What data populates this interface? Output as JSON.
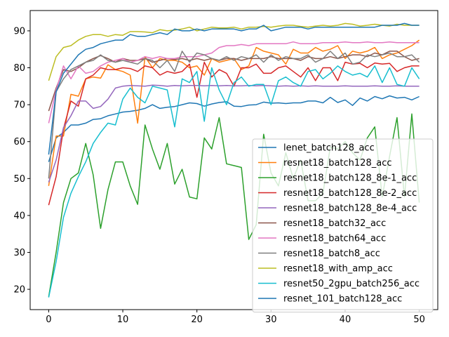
{
  "chart_data": {
    "type": "line",
    "title": "",
    "xlabel": "",
    "ylabel": "",
    "xlim": [
      -2.5,
      52.5
    ],
    "ylim": [
      14.5,
      95.5
    ],
    "xticks": [
      0,
      10,
      20,
      30,
      40,
      50
    ],
    "yticks": [
      20,
      30,
      40,
      50,
      60,
      70,
      80,
      90
    ],
    "grid": false,
    "legend_position": "lower-right",
    "x": [
      0,
      1,
      2,
      3,
      4,
      5,
      6,
      7,
      8,
      9,
      10,
      11,
      12,
      13,
      14,
      15,
      16,
      17,
      18,
      19,
      20,
      21,
      22,
      23,
      24,
      25,
      26,
      27,
      28,
      29,
      30,
      31,
      32,
      33,
      34,
      35,
      36,
      37,
      38,
      39,
      40,
      41,
      42,
      43,
      44,
      45,
      46,
      47,
      48,
      49,
      50
    ],
    "series": [
      {
        "name": "lenet_batch128_acc",
        "color": "#1f77b4",
        "values": [
          54.5,
          61.0,
          62.5,
          64.5,
          64.5,
          65.0,
          66.0,
          66.2,
          67.0,
          67.5,
          68.0,
          68.2,
          68.5,
          69.0,
          70.0,
          69.0,
          69.3,
          69.5,
          70.0,
          70.5,
          70.3,
          69.6,
          70.2,
          70.6,
          70.8,
          69.6,
          69.5,
          69.9,
          70.0,
          70.7,
          70.4,
          70.5,
          70.3,
          70.5,
          70.5,
          71.0,
          71.0,
          70.5,
          72.0,
          70.6,
          71.3,
          69.8,
          71.8,
          71.0,
          72.2,
          71.6,
          72.4,
          71.8,
          72.0,
          71.3,
          72.2
        ]
      },
      {
        "name": "resnet18_batch128_acc",
        "color": "#ff7f0e",
        "values": [
          48.0,
          61.5,
          61.5,
          72.8,
          72.3,
          77.0,
          77.5,
          77.2,
          80.8,
          79.5,
          79.0,
          78.0,
          65.0,
          83.0,
          80.0,
          82.5,
          82.0,
          82.0,
          81.5,
          80.0,
          80.5,
          78.0,
          82.5,
          81.5,
          82.0,
          82.5,
          79.5,
          80.5,
          85.5,
          84.5,
          84.0,
          83.5,
          81.0,
          85.0,
          84.0,
          84.0,
          85.5,
          84.5,
          85.0,
          86.0,
          82.5,
          84.5,
          84.0,
          84.5,
          85.5,
          82.5,
          83.5,
          84.0,
          85.0,
          86.0,
          87.5
        ]
      },
      {
        "name": "resnet18_batch128_8e-1_acc",
        "color": "#2ca02c",
        "values": [
          18.0,
          30.0,
          43.5,
          50.0,
          51.5,
          59.5,
          51.0,
          36.5,
          47.0,
          54.5,
          54.5,
          48.0,
          43.0,
          64.5,
          58.0,
          52.5,
          59.5,
          48.5,
          52.5,
          45.0,
          44.5,
          61.0,
          58.0,
          66.5,
          54.0,
          53.5,
          53.0,
          33.5,
          37.5,
          62.0,
          51.5,
          48.0,
          57.0,
          50.0,
          55.0,
          44.0,
          44.0,
          46.0,
          58.5,
          58.0,
          60.0,
          57.0,
          55.0,
          61.0,
          64.0,
          45.0,
          56.0,
          66.5,
          45.0,
          67.5,
          43.5
        ]
      },
      {
        "name": "resnet18_batch128_8e-2_acc",
        "color": "#d62728",
        "values": [
          42.8,
          50.5,
          63.5,
          71.0,
          69.6,
          77.0,
          78.0,
          80.0,
          79.5,
          79.5,
          80.0,
          79.8,
          79.0,
          80.5,
          80.0,
          78.0,
          79.0,
          78.5,
          79.0,
          81.0,
          72.0,
          81.5,
          77.5,
          79.5,
          78.5,
          75.0,
          80.0,
          80.0,
          81.0,
          78.5,
          78.5,
          80.0,
          80.5,
          79.0,
          77.5,
          80.0,
          76.5,
          80.0,
          80.0,
          76.5,
          81.5,
          81.0,
          81.2,
          80.0,
          81.3,
          81.0,
          81.2,
          79.0,
          80.0,
          80.5,
          80.5
        ]
      },
      {
        "name": "resnet18_batch128_8e-4_acc",
        "color": "#9467bd",
        "values": [
          49.0,
          55.0,
          63.8,
          67.0,
          71.0,
          71.0,
          69.0,
          69.5,
          71.5,
          74.5,
          75.0,
          75.2,
          75.1,
          75.0,
          75.3,
          75.2,
          75.0,
          75.2,
          75.1,
          75.2,
          75.2,
          75.1,
          75.2,
          75.1,
          75.2,
          75.1,
          75.1,
          75.2,
          75.1,
          75.2,
          75.1,
          75.0,
          75.1,
          75.0,
          75.1,
          75.0,
          75.1,
          75.0,
          75.0,
          75.0,
          75.1,
          75.0,
          75.0,
          75.0,
          75.1,
          75.0,
          75.0,
          75.1,
          75.0,
          75.0,
          75.0
        ]
      },
      {
        "name": "resnet18_batch32_acc",
        "color": "#8c564b",
        "values": [
          68.3,
          74.5,
          79.5,
          79.0,
          80.0,
          81.5,
          82.5,
          83.3,
          82.5,
          81.5,
          82.5,
          82.0,
          82.0,
          82.5,
          81.5,
          82.0,
          82.5,
          82.2,
          82.5,
          82.0,
          82.5,
          82.0,
          82.5,
          82.0,
          82.5,
          82.5,
          82.0,
          82.5,
          82.5,
          82.5,
          83.0,
          82.5,
          82.5,
          82.5,
          82.0,
          83.0,
          82.5,
          82.5,
          83.0,
          82.5,
          83.0,
          83.5,
          83.5,
          83.0,
          84.0,
          83.5,
          84.5,
          84.5,
          83.0,
          82.0,
          82.5
        ]
      },
      {
        "name": "resnet18_batch64_acc",
        "color": "#e377c2",
        "values": [
          65.0,
          74.0,
          80.5,
          77.0,
          80.5,
          78.5,
          79.0,
          80.5,
          81.5,
          82.0,
          82.5,
          81.5,
          82.0,
          83.0,
          82.5,
          83.0,
          82.5,
          82.5,
          83.0,
          83.0,
          83.0,
          83.5,
          84.0,
          85.5,
          86.0,
          86.0,
          86.3,
          86.0,
          86.5,
          86.5,
          86.5,
          86.5,
          86.5,
          87.0,
          86.5,
          86.5,
          86.5,
          86.8,
          86.8,
          86.8,
          87.0,
          86.8,
          86.8,
          87.0,
          86.8,
          86.8,
          87.0,
          86.8,
          86.8,
          86.8,
          86.8
        ]
      },
      {
        "name": "resnet18_batch8_acc",
        "color": "#7f7f7f",
        "values": [
          50.0,
          73.5,
          77.0,
          79.5,
          80.5,
          81.5,
          82.0,
          83.5,
          82.0,
          81.5,
          82.0,
          81.5,
          81.0,
          82.5,
          82.0,
          80.0,
          82.0,
          79.0,
          84.5,
          81.5,
          84.0,
          83.5,
          82.5,
          82.0,
          83.0,
          82.0,
          83.0,
          82.5,
          83.5,
          81.5,
          83.5,
          82.0,
          83.0,
          82.5,
          82.5,
          83.5,
          81.5,
          82.5,
          84.5,
          82.5,
          84.0,
          81.0,
          81.5,
          83.5,
          83.0,
          83.5,
          84.0,
          83.0,
          83.0,
          83.5,
          81.5
        ]
      },
      {
        "name": "resnet18_with_amp_acc",
        "color": "#bcbd22",
        "values": [
          76.5,
          83.0,
          85.5,
          86.0,
          87.5,
          88.5,
          89.0,
          89.0,
          88.5,
          89.0,
          88.8,
          89.8,
          89.8,
          89.7,
          89.5,
          90.3,
          90.0,
          90.2,
          90.5,
          91.0,
          90.0,
          90.5,
          91.0,
          90.8,
          90.8,
          91.0,
          90.5,
          91.0,
          91.0,
          91.2,
          91.0,
          91.3,
          91.5,
          91.5,
          91.2,
          91.0,
          91.3,
          91.5,
          91.3,
          91.5,
          92.0,
          91.8,
          91.3,
          91.5,
          91.8,
          91.5,
          91.3,
          91.8,
          91.5,
          91.5,
          91.5
        ]
      },
      {
        "name": "resnet50_2gpu_batch256_acc",
        "color": "#17becf",
        "values": [
          17.8,
          27.5,
          39.5,
          46.0,
          50.5,
          54.5,
          59.5,
          62.5,
          65.0,
          64.5,
          71.5,
          74.5,
          72.0,
          70.5,
          75.0,
          74.5,
          74.0,
          64.0,
          77.0,
          76.0,
          79.0,
          65.5,
          80.0,
          74.0,
          70.0,
          76.0,
          77.5,
          75.0,
          75.5,
          75.5,
          70.0,
          76.5,
          77.5,
          76.0,
          75.0,
          79.0,
          79.5,
          77.0,
          78.5,
          80.5,
          79.0,
          78.0,
          78.5,
          77.5,
          80.5,
          76.0,
          80.0,
          75.5,
          75.0,
          80.0,
          77.0
        ]
      },
      {
        "name": "resnet_101_batch128_acc",
        "color": "#1f77b4",
        "values": [
          56.5,
          73.5,
          78.5,
          81.0,
          83.5,
          85.0,
          85.5,
          86.5,
          87.0,
          87.5,
          87.5,
          89.0,
          88.5,
          88.5,
          89.0,
          89.5,
          89.0,
          90.5,
          90.0,
          90.0,
          90.5,
          90.0,
          90.5,
          90.5,
          90.5,
          90.5,
          90.0,
          90.5,
          90.5,
          91.5,
          90.0,
          90.5,
          91.0,
          91.0,
          91.0,
          90.5,
          91.0,
          91.0,
          91.0,
          91.0,
          91.0,
          91.0,
          91.0,
          91.0,
          91.0,
          91.5,
          91.5,
          91.5,
          92.0,
          91.5,
          91.5
        ]
      }
    ]
  }
}
